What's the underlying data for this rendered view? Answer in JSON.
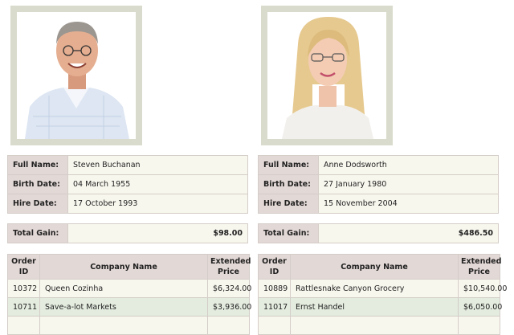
{
  "labels": {
    "full_name": "Full Name:",
    "birth_date": "Birth Date:",
    "hire_date": "Hire Date:",
    "total_gain": "Total Gain:"
  },
  "columns": {
    "order_id": "Order ID",
    "company_name": "Company Name",
    "extended_price": "Extended Price"
  },
  "employees": [
    {
      "full_name": "Steven Buchanan",
      "birth_date": "04 March 1955",
      "hire_date": "17 October 1993",
      "total_gain": "$98.00",
      "orders": [
        {
          "order_id": "10372",
          "company": "Queen Cozinha",
          "price": "$6,324.00"
        },
        {
          "order_id": "10711",
          "company": "Save-a-lot Markets",
          "price": "$3,936.00"
        }
      ]
    },
    {
      "full_name": "Anne Dodsworth",
      "birth_date": "27 January 1980",
      "hire_date": "15 November 2004",
      "total_gain": "$486.50",
      "orders": [
        {
          "order_id": "10889",
          "company": "Rattlesnake Canyon Grocery",
          "price": "$10,540.00"
        },
        {
          "order_id": "11017",
          "company": "Ernst Handel",
          "price": "$6,050.00"
        }
      ]
    }
  ]
}
